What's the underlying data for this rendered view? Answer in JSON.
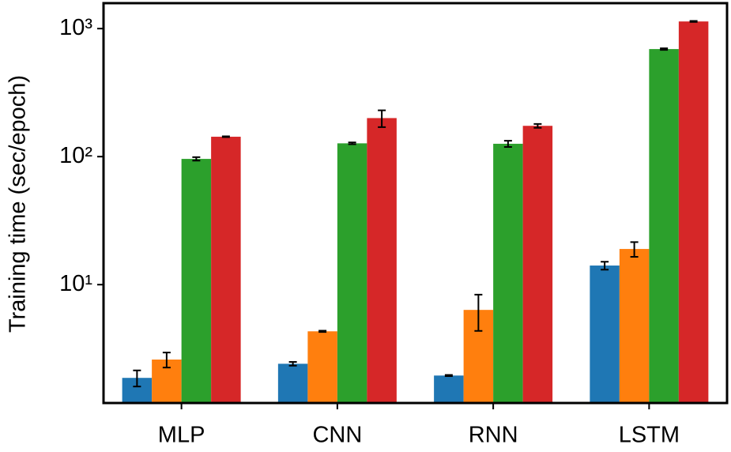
{
  "chart_data": {
    "type": "bar",
    "y_label": "Training time (sec/epoch)",
    "categories": [
      "MLP",
      "CNN",
      "RNN",
      "LSTM"
    ],
    "y_log": true,
    "ylim": [
      1.19,
      1580
    ],
    "yticks": [
      {
        "value": 10,
        "label": "10¹"
      },
      {
        "value": 100,
        "label": "10²"
      },
      {
        "value": 1000,
        "label": "10³"
      }
    ],
    "series": [
      {
        "color": "#1f77b4",
        "values": [
          1.87,
          2.41,
          1.95,
          14.1
        ],
        "errors": [
          0.27,
          0.08,
          0.02,
          1
        ]
      },
      {
        "color": "#ff7f0e",
        "values": [
          2.6,
          4.32,
          6.35,
          19
        ],
        "errors": [
          0.35,
          0.05,
          2,
          2.5
        ]
      },
      {
        "color": "#2ca02c",
        "values": [
          96,
          127,
          126,
          692
        ],
        "errors": [
          3,
          2,
          7,
          10
        ]
      },
      {
        "color": "#d62728",
        "values": [
          143,
          200,
          174,
          1137
        ],
        "errors": [
          1,
          30,
          6,
          10
        ]
      }
    ]
  }
}
